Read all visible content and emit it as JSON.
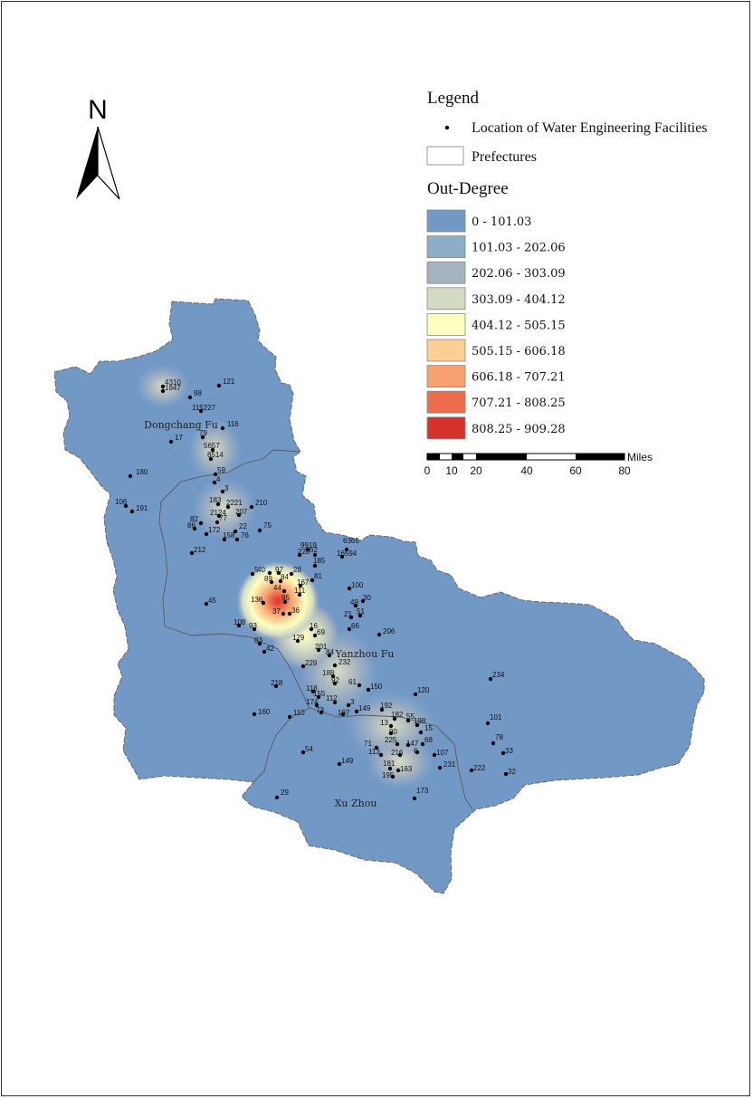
{
  "north_arrow": {
    "letter": "N"
  },
  "legend": {
    "title": "Legend",
    "point_label": "Location of Water Engineering Facilities",
    "polygon_label": "Prefectures",
    "ramp_title": "Out-Degree",
    "classes": [
      {
        "label": "0 - 101.03",
        "color": "#7298c6"
      },
      {
        "label": "101.03 - 202.06",
        "color": "#8eaec7"
      },
      {
        "label": "202.06 - 303.09",
        "color": "#a5b2bf"
      },
      {
        "label": "303.09 - 404.12",
        "color": "#d3dbc3"
      },
      {
        "label": "404.12 - 505.15",
        "color": "#ffffc0"
      },
      {
        "label": "505.15 - 606.18",
        "color": "#fdcf94"
      },
      {
        "label": "606.18 - 707.21",
        "color": "#f9a070"
      },
      {
        "label": "707.21 - 808.25",
        "color": "#ec6c4c"
      },
      {
        "label": "808.25 - 909.28",
        "color": "#d7312b"
      }
    ]
  },
  "scale_bar": {
    "unit": "Miles",
    "ticks": [
      "0",
      "10",
      "20",
      "40",
      "60",
      "80"
    ]
  },
  "prefectures": [
    "Dongchang Fu",
    "Yanzhou Fu",
    "Xu Zhou"
  ],
  "facility_labels": [
    "4310",
    "1847",
    "121",
    "98",
    "115227",
    "116",
    "17",
    "79",
    "5657",
    "8514",
    "59",
    "4",
    "3",
    "180",
    "106",
    "191",
    "183",
    "2221",
    "210",
    "2124",
    "207",
    "82",
    "86",
    "172",
    "77",
    "158",
    "76",
    "22",
    "75",
    "212",
    "9919",
    "228",
    "62",
    "185",
    "6365",
    "16594",
    "5",
    "40",
    "97",
    "28",
    "89",
    "84",
    "167",
    "81",
    "111",
    "100",
    "44",
    "95",
    "136",
    "49",
    "30",
    "21",
    "51",
    "45",
    "37",
    "36",
    "108",
    "93",
    "66",
    "206",
    "16",
    "69",
    "179",
    "83",
    "42",
    "201",
    "84",
    "232",
    "229",
    "188",
    "92",
    "61",
    "150",
    "218",
    "118",
    "155",
    "174",
    "112",
    "3",
    "73",
    "197",
    "149",
    "192",
    "120",
    "234",
    "160",
    "110",
    "182",
    "55",
    "198",
    "15",
    "13",
    "90",
    "54",
    "71",
    "113",
    "225",
    "216",
    "147",
    "6",
    "68",
    "107",
    "101",
    "78",
    "33",
    "149",
    "181",
    "163",
    "195",
    "231",
    "222",
    "32",
    "29",
    "173",
    "67"
  ]
}
